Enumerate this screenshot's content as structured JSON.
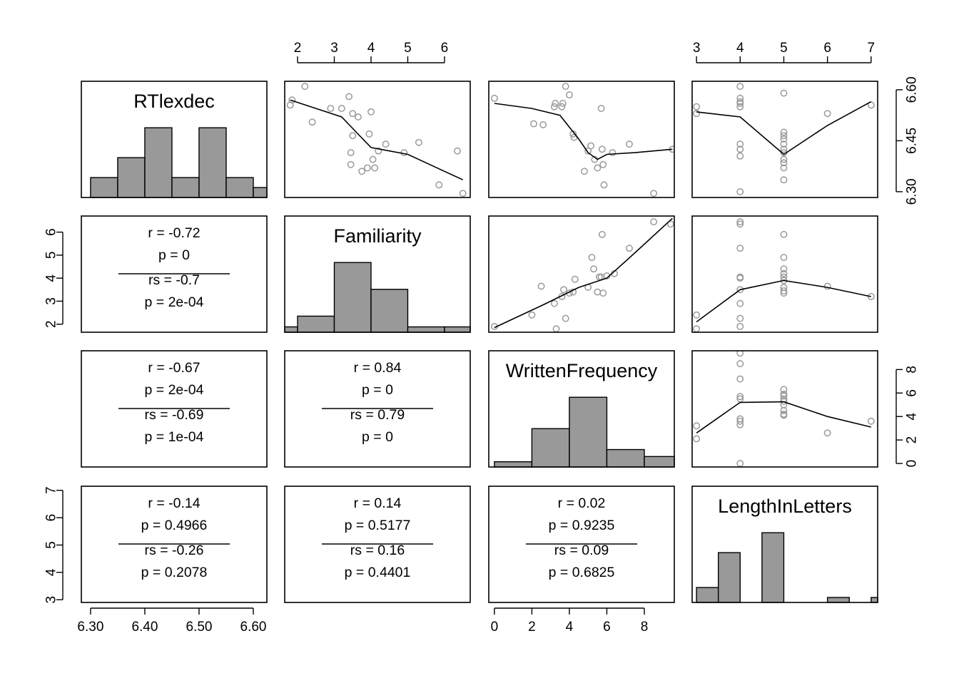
{
  "colors": {
    "bar_fill": "#999999",
    "point_stroke": "#9a9a9a",
    "line": "#000000",
    "background": "#ffffff"
  },
  "chart_data": {
    "type": "scatter",
    "title": "",
    "variables": [
      "RTlexdec",
      "Familiarity",
      "WrittenFrequency",
      "LengthInLetters"
    ],
    "axes": {
      "RTlexdec": {
        "range": [
          6.283,
          6.625
        ],
        "ticks": [
          "6.30",
          "6.40",
          "6.50",
          "6.60"
        ],
        "tick_values": [
          6.3,
          6.4,
          6.5,
          6.6
        ],
        "right_ticks": [
          "6.30",
          "6.45",
          "6.60"
        ],
        "right_tick_values": [
          6.3,
          6.45,
          6.6
        ]
      },
      "Familiarity": {
        "range": [
          1.65,
          6.7
        ],
        "ticks": [
          "2",
          "3",
          "4",
          "5",
          "6"
        ],
        "tick_values": [
          2,
          3,
          4,
          5,
          6
        ]
      },
      "WrittenFrequency": {
        "range": [
          -0.3,
          9.6
        ],
        "ticks": [
          "0",
          "2",
          "4",
          "6",
          "8"
        ],
        "tick_values": [
          0,
          2,
          4,
          6,
          8
        ]
      },
      "LengthInLetters": {
        "range": [
          2.9,
          7.15
        ],
        "ticks": [
          "3",
          "4",
          "5",
          "6",
          "7"
        ],
        "tick_values": [
          3,
          4,
          5,
          6,
          7
        ]
      }
    },
    "histograms": {
      "RTlexdec": {
        "breaks": [
          6.3,
          6.35,
          6.4,
          6.45,
          6.5,
          6.55,
          6.6,
          6.65
        ],
        "heights": [
          0.2,
          0.4,
          0.7,
          0.2,
          0.7,
          0.2,
          0.1
        ],
        "hmax": 0.7
      },
      "Familiarity": {
        "breaks": [
          1,
          2,
          3,
          4,
          5,
          6,
          7
        ],
        "heights": [
          0.2,
          0.6,
          2.6,
          1.6,
          0.2,
          0.2
        ],
        "hmax": 2.6
      },
      "WrittenFrequency": {
        "breaks": [
          0,
          2,
          4,
          6,
          8,
          10
        ],
        "heights": [
          0.3,
          2.2,
          4.0,
          1.0,
          0.6
        ],
        "hmax": 4.0
      },
      "LengthInLetters": {
        "breaks": [
          2.5,
          3.5,
          4.5,
          5.5,
          6.5,
          7.5
        ],
        "heights": [
          3,
          10,
          14,
          1,
          1
        ],
        "hmax": 14,
        "bars_x": [
          [
            3.0,
            3.5
          ],
          [
            3.5,
            4.0
          ],
          [
            4.5,
            5.0
          ],
          [
            6.0,
            6.5
          ],
          [
            7.0,
            7.5
          ]
        ]
      }
    },
    "scatter_panels": [
      {
        "x": "Familiarity",
        "y": "RTlexdec",
        "points": [
          [
            1.8,
            6.555
          ],
          [
            1.85,
            6.57
          ],
          [
            2.2,
            6.61
          ],
          [
            2.4,
            6.505
          ],
          [
            2.9,
            6.545
          ],
          [
            3.2,
            6.545
          ],
          [
            3.4,
            6.58
          ],
          [
            3.5,
            6.465
          ],
          [
            3.45,
            6.415
          ],
          [
            3.45,
            6.38
          ],
          [
            3.5,
            6.53
          ],
          [
            3.65,
            6.52
          ],
          [
            3.75,
            6.36
          ],
          [
            3.9,
            6.37
          ],
          [
            3.95,
            6.47
          ],
          [
            4.0,
            6.535
          ],
          [
            4.05,
            6.395
          ],
          [
            4.1,
            6.37
          ],
          [
            4.2,
            6.42
          ],
          [
            4.4,
            6.44
          ],
          [
            4.9,
            6.415
          ],
          [
            5.3,
            6.445
          ],
          [
            5.85,
            6.32
          ],
          [
            6.35,
            6.42
          ],
          [
            6.5,
            6.295
          ]
        ],
        "smooth": [
          [
            1.8,
            6.57
          ],
          [
            2.5,
            6.545
          ],
          [
            3.2,
            6.52
          ],
          [
            3.6,
            6.475
          ],
          [
            4.0,
            6.43
          ],
          [
            4.5,
            6.42
          ],
          [
            5.0,
            6.41
          ],
          [
            5.7,
            6.375
          ],
          [
            6.5,
            6.335
          ]
        ]
      },
      {
        "x": "WrittenFrequency",
        "y": "RTlexdec",
        "points": [
          [
            0,
            6.575
          ],
          [
            2.1,
            6.5
          ],
          [
            2.6,
            6.497
          ],
          [
            3.2,
            6.55
          ],
          [
            3.25,
            6.56
          ],
          [
            3.6,
            6.55
          ],
          [
            3.65,
            6.56
          ],
          [
            3.8,
            6.61
          ],
          [
            4.0,
            6.585
          ],
          [
            4.2,
            6.47
          ],
          [
            4.25,
            6.46
          ],
          [
            4.8,
            6.36
          ],
          [
            5.0,
            6.42
          ],
          [
            5.15,
            6.435
          ],
          [
            5.35,
            6.395
          ],
          [
            5.5,
            6.37
          ],
          [
            5.7,
            6.545
          ],
          [
            5.75,
            6.425
          ],
          [
            5.8,
            6.38
          ],
          [
            5.85,
            6.32
          ],
          [
            6.3,
            6.415
          ],
          [
            7.2,
            6.44
          ],
          [
            8.5,
            6.295
          ],
          [
            9.5,
            6.425
          ]
        ],
        "smooth": [
          [
            0,
            6.56
          ],
          [
            2.0,
            6.545
          ],
          [
            3.5,
            6.525
          ],
          [
            4.5,
            6.455
          ],
          [
            5.0,
            6.415
          ],
          [
            5.5,
            6.395
          ],
          [
            6.0,
            6.41
          ],
          [
            7.5,
            6.415
          ],
          [
            9.5,
            6.425
          ]
        ]
      },
      {
        "x": "LengthInLetters",
        "y": "RTlexdec",
        "points": [
          [
            3,
            6.53
          ],
          [
            3,
            6.55
          ],
          [
            4,
            6.61
          ],
          [
            4,
            6.575
          ],
          [
            4,
            6.565
          ],
          [
            4,
            6.56
          ],
          [
            4,
            6.55
          ],
          [
            4,
            6.44
          ],
          [
            4,
            6.425
          ],
          [
            4,
            6.405
          ],
          [
            4,
            6.3
          ],
          [
            5,
            6.59
          ],
          [
            5,
            6.475
          ],
          [
            5,
            6.465
          ],
          [
            5,
            6.455
          ],
          [
            5,
            6.44
          ],
          [
            5,
            6.425
          ],
          [
            5,
            6.415
          ],
          [
            5,
            6.395
          ],
          [
            5,
            6.385
          ],
          [
            5,
            6.37
          ],
          [
            5,
            6.335
          ],
          [
            6,
            6.53
          ],
          [
            7,
            6.555
          ]
        ],
        "smooth": [
          [
            3,
            6.535
          ],
          [
            4,
            6.52
          ],
          [
            5,
            6.41
          ],
          [
            6,
            6.495
          ],
          [
            7,
            6.565
          ]
        ]
      },
      {
        "x": "WrittenFrequency",
        "y": "Familiarity",
        "points": [
          [
            0,
            1.9
          ],
          [
            2.0,
            2.4
          ],
          [
            2.5,
            3.65
          ],
          [
            3.2,
            2.9
          ],
          [
            3.3,
            1.8
          ],
          [
            3.6,
            3.2
          ],
          [
            3.7,
            3.5
          ],
          [
            3.8,
            2.25
          ],
          [
            4.0,
            3.35
          ],
          [
            4.2,
            3.4
          ],
          [
            4.3,
            3.95
          ],
          [
            5.0,
            3.6
          ],
          [
            5.2,
            4.9
          ],
          [
            5.3,
            4.4
          ],
          [
            5.5,
            3.4
          ],
          [
            5.6,
            4.05
          ],
          [
            5.7,
            4.05
          ],
          [
            5.75,
            5.9
          ],
          [
            5.8,
            3.35
          ],
          [
            6.0,
            4.1
          ],
          [
            6.4,
            4.2
          ],
          [
            7.2,
            5.3
          ],
          [
            8.5,
            6.45
          ],
          [
            9.4,
            6.35
          ]
        ],
        "smooth": [
          [
            0,
            1.85
          ],
          [
            2.5,
            2.8
          ],
          [
            4.5,
            3.6
          ],
          [
            6.0,
            4.0
          ],
          [
            7.5,
            5.1
          ],
          [
            9.5,
            6.6
          ]
        ]
      },
      {
        "x": "LengthInLetters",
        "y": "Familiarity",
        "points": [
          [
            3,
            1.8
          ],
          [
            3,
            2.4
          ],
          [
            4,
            1.9
          ],
          [
            4,
            2.25
          ],
          [
            4,
            2.9
          ],
          [
            4,
            3.5
          ],
          [
            4,
            4.0
          ],
          [
            4,
            4.05
          ],
          [
            4,
            5.3
          ],
          [
            4,
            6.35
          ],
          [
            4,
            6.45
          ],
          [
            5,
            3.35
          ],
          [
            5,
            3.45
          ],
          [
            5,
            3.6
          ],
          [
            5,
            3.9
          ],
          [
            5,
            4.05
          ],
          [
            5,
            4.2
          ],
          [
            5,
            4.4
          ],
          [
            5,
            4.9
          ],
          [
            5,
            5.9
          ],
          [
            6,
            3.65
          ],
          [
            7,
            3.2
          ]
        ],
        "smooth": [
          [
            3,
            2.1
          ],
          [
            4,
            3.5
          ],
          [
            5,
            3.9
          ],
          [
            6,
            3.6
          ],
          [
            7,
            3.2
          ]
        ]
      },
      {
        "x": "LengthInLetters",
        "y": "WrittenFrequency",
        "points": [
          [
            3,
            2.1
          ],
          [
            3,
            3.2
          ],
          [
            4,
            0
          ],
          [
            4,
            3.3
          ],
          [
            4,
            3.6
          ],
          [
            4,
            3.8
          ],
          [
            4,
            5.5
          ],
          [
            4,
            5.7
          ],
          [
            4,
            7.2
          ],
          [
            4,
            8.5
          ],
          [
            4,
            9.4
          ],
          [
            5,
            4.1
          ],
          [
            5,
            4.2
          ],
          [
            5,
            4.5
          ],
          [
            5,
            5.0
          ],
          [
            5,
            5.3
          ],
          [
            5,
            5.5
          ],
          [
            5,
            5.75
          ],
          [
            5,
            5.9
          ],
          [
            5,
            6.3
          ],
          [
            6,
            2.6
          ],
          [
            7,
            3.6
          ]
        ],
        "smooth": [
          [
            3,
            2.6
          ],
          [
            4,
            5.2
          ],
          [
            5,
            5.25
          ],
          [
            6,
            4.0
          ],
          [
            7,
            3.1
          ]
        ]
      }
    ],
    "correlation_panels": [
      {
        "pair": [
          "RTlexdec",
          "Familiarity"
        ],
        "lines": [
          "r = -0.72",
          "p = 0",
          "rs = -0.7",
          "p = 2e-04"
        ]
      },
      {
        "pair": [
          "RTlexdec",
          "WrittenFrequency"
        ],
        "lines": [
          "r = -0.67",
          "p = 2e-04",
          "rs = -0.69",
          "p = 1e-04"
        ]
      },
      {
        "pair": [
          "Familiarity",
          "WrittenFrequency"
        ],
        "lines": [
          "r = 0.84",
          "p = 0",
          "rs = 0.79",
          "p = 0"
        ]
      },
      {
        "pair": [
          "RTlexdec",
          "LengthInLetters"
        ],
        "lines": [
          "r = -0.14",
          "p = 0.4966",
          "rs = -0.26",
          "p = 0.2078"
        ]
      },
      {
        "pair": [
          "Familiarity",
          "LengthInLetters"
        ],
        "lines": [
          "r = 0.14",
          "p = 0.5177",
          "rs = 0.16",
          "p = 0.4401"
        ]
      },
      {
        "pair": [
          "WrittenFrequency",
          "LengthInLetters"
        ],
        "lines": [
          "r = 0.02",
          "p = 0.9235",
          "rs = 0.09",
          "p = 0.6825"
        ]
      }
    ]
  }
}
